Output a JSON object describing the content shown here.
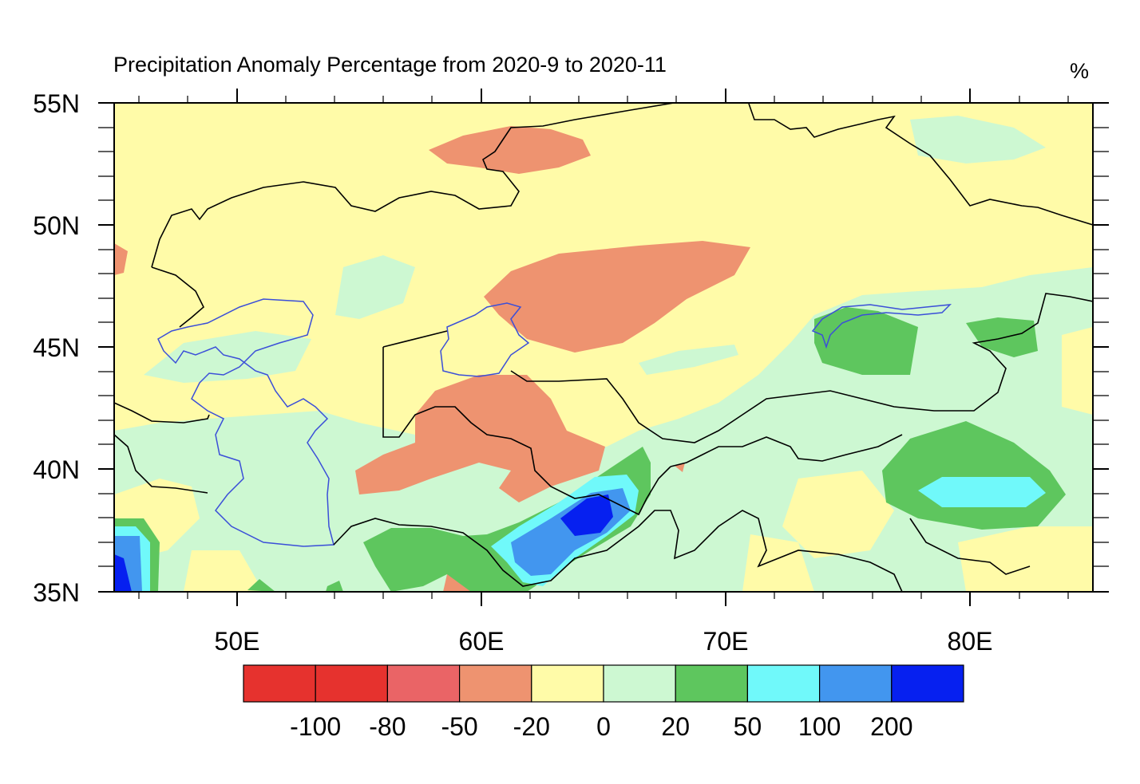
{
  "map": {
    "title": "Precipitation Anomaly Percentage from 2020-9 to 2020-11",
    "unit": "%",
    "lat_labels": [
      "55N",
      "50N",
      "45N",
      "40N",
      "35N"
    ],
    "lon_labels": [
      "50E",
      "60E",
      "70E",
      "80E"
    ],
    "extent": {
      "lon_min": 45,
      "lon_max": 85,
      "lat_min": 35,
      "lat_max": 55
    },
    "background_class": "0 to 20"
  },
  "colorbar": {
    "colors": [
      "#e6322e",
      "#e6322e",
      "#ea6466",
      "#ee9370",
      "#fffba8",
      "#cdf8d2",
      "#5ec65e",
      "#70f9fa",
      "#4296ef",
      "#0620f0"
    ],
    "labels": [
      "-100",
      "-80",
      "-50",
      "-20",
      "0",
      "20",
      "50",
      "100",
      "200"
    ]
  }
}
